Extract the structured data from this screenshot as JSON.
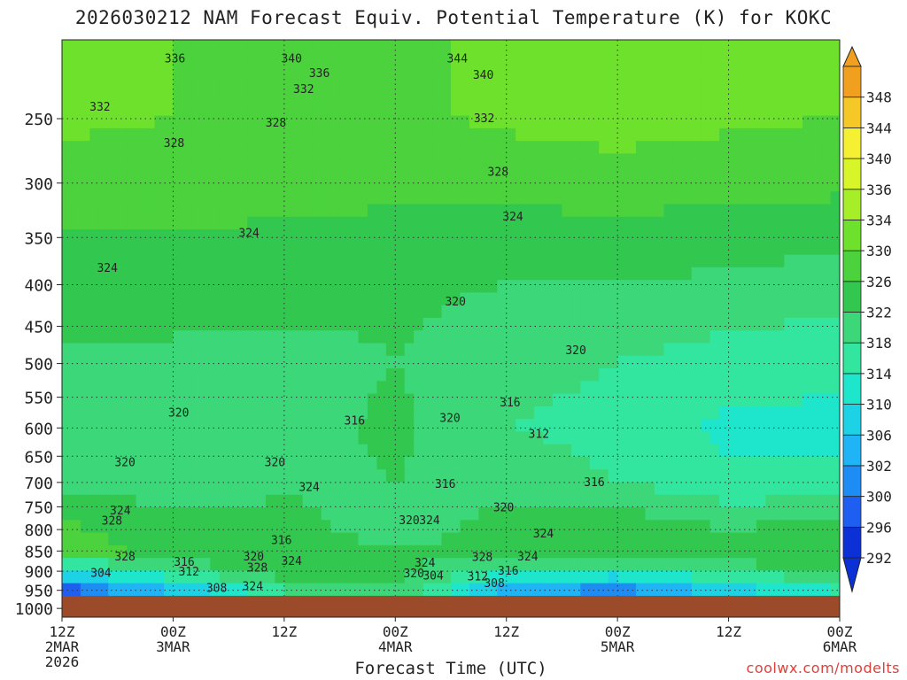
{
  "chart_data": {
    "type": "heatmap",
    "title": "2026030212 NAM Forecast Equiv. Potential Temperature (K) for KOKC",
    "xlabel": "Forecast Time (UTC)",
    "ylabel": "",
    "credit": "coolwx.com/modelts",
    "x_ticks": [
      {
        "hour": 0,
        "lines": [
          "12Z",
          "2MAR",
          "2026"
        ]
      },
      {
        "hour": 12,
        "lines": [
          "00Z",
          "3MAR"
        ]
      },
      {
        "hour": 24,
        "lines": [
          "12Z"
        ]
      },
      {
        "hour": 36,
        "lines": [
          "00Z",
          "4MAR"
        ]
      },
      {
        "hour": 48,
        "lines": [
          "12Z"
        ]
      },
      {
        "hour": 60,
        "lines": [
          "00Z",
          "5MAR"
        ]
      },
      {
        "hour": 72,
        "lines": [
          "12Z"
        ]
      },
      {
        "hour": 84,
        "lines": [
          "00Z",
          "6MAR"
        ]
      }
    ],
    "xlim": [
      0,
      84
    ],
    "y_ticks": [
      250,
      300,
      350,
      400,
      450,
      500,
      550,
      600,
      650,
      700,
      750,
      800,
      850,
      900,
      950,
      1000
    ],
    "ylim": [
      200,
      1025
    ],
    "y_scale": "log-pressure",
    "grid": "dotted",
    "ground_level_hpa": 965,
    "colorbar": {
      "levels": [
        292,
        296,
        300,
        302,
        306,
        310,
        314,
        318,
        322,
        326,
        330,
        334,
        336,
        340,
        344,
        348
      ],
      "colors": [
        "#0a30d6",
        "#1e5ef0",
        "#1e8cf5",
        "#1eb4f5",
        "#1ed2e6",
        "#1ee6cd",
        "#32e6a0",
        "#3cd778",
        "#32c850",
        "#4bd23c",
        "#6ee12d",
        "#a5ee28",
        "#d7f528",
        "#f5f032",
        "#f5c828",
        "#f0a01e"
      ]
    },
    "series": [
      {
        "name": "248 hPa",
        "x": [
          0,
          12,
          24,
          36,
          48,
          60,
          72,
          84
        ],
        "values": [
          331,
          330,
          329,
          329,
          331,
          332,
          331,
          330
        ]
      },
      {
        "name": "300 hPa",
        "x": [
          0,
          12,
          24,
          36,
          48,
          60,
          72,
          84
        ],
        "values": [
          328,
          328,
          327,
          327,
          327,
          328,
          327,
          327
        ]
      },
      {
        "name": "400 hPa",
        "x": [
          0,
          12,
          24,
          36,
          48,
          60,
          72,
          84
        ],
        "values": [
          324,
          324,
          324,
          323,
          322,
          322,
          321,
          320
        ]
      },
      {
        "name": "500 hPa",
        "x": [
          0,
          12,
          24,
          36,
          48,
          60,
          72,
          84
        ],
        "values": [
          321,
          321,
          320,
          322,
          319,
          318,
          316,
          315
        ]
      },
      {
        "name": "600 hPa",
        "x": [
          0,
          12,
          24,
          36,
          48,
          60,
          72,
          84
        ],
        "values": [
          320,
          320,
          320,
          323,
          318,
          317,
          313,
          313
        ]
      },
      {
        "name": "700 hPa",
        "x": [
          0,
          12,
          24,
          36,
          48,
          60,
          72,
          84
        ],
        "values": [
          321,
          320,
          321,
          322,
          320,
          318,
          315,
          315
        ]
      },
      {
        "name": "800 hPa",
        "x": [
          0,
          12,
          24,
          36,
          48,
          60,
          72,
          84
        ],
        "values": [
          327,
          323,
          324,
          319,
          324,
          325,
          322,
          324
        ]
      },
      {
        "name": "850 hPa",
        "x": [
          0,
          12,
          24,
          36,
          48,
          60,
          72,
          84
        ],
        "values": [
          328,
          325,
          326,
          322,
          325,
          326,
          325,
          325
        ]
      },
      {
        "name": "900 hPa",
        "x": [
          0,
          12,
          24,
          36,
          48,
          60,
          72,
          84
        ],
        "values": [
          310,
          318,
          325,
          324,
          315,
          314,
          320,
          322
        ]
      },
      {
        "name": "950 hPa",
        "x": [
          0,
          12,
          24,
          36,
          48,
          60,
          72,
          84
        ],
        "values": [
          298,
          306,
          318,
          322,
          304,
          300,
          308,
          314
        ]
      }
    ],
    "contour_labels": [
      {
        "text": "336",
        "x": 12.2,
        "p": 211
      },
      {
        "text": "340",
        "x": 24.8,
        "p": 211
      },
      {
        "text": "336",
        "x": 27.8,
        "p": 220
      },
      {
        "text": "344",
        "x": 42.7,
        "p": 211
      },
      {
        "text": "340",
        "x": 45.5,
        "p": 221
      },
      {
        "text": "332",
        "x": 26.1,
        "p": 230
      },
      {
        "text": "332",
        "x": 4.1,
        "p": 242
      },
      {
        "text": "328",
        "x": 23.1,
        "p": 253
      },
      {
        "text": "332",
        "x": 45.6,
        "p": 250
      },
      {
        "text": "328",
        "x": 12.1,
        "p": 268
      },
      {
        "text": "328",
        "x": 47.1,
        "p": 291
      },
      {
        "text": "324",
        "x": 20.2,
        "p": 346
      },
      {
        "text": "324",
        "x": 48.7,
        "p": 330
      },
      {
        "text": "324",
        "x": 4.9,
        "p": 382
      },
      {
        "text": "320",
        "x": 42.5,
        "p": 420
      },
      {
        "text": "320",
        "x": 55.5,
        "p": 482
      },
      {
        "text": "316",
        "x": 48.4,
        "p": 559
      },
      {
        "text": "316",
        "x": 31.6,
        "p": 588
      },
      {
        "text": "320",
        "x": 12.6,
        "p": 575
      },
      {
        "text": "320",
        "x": 41.9,
        "p": 584
      },
      {
        "text": "312",
        "x": 51.5,
        "p": 611
      },
      {
        "text": "320",
        "x": 6.8,
        "p": 662
      },
      {
        "text": "320",
        "x": 23.0,
        "p": 662
      },
      {
        "text": "324",
        "x": 26.7,
        "p": 710
      },
      {
        "text": "316",
        "x": 41.4,
        "p": 704
      },
      {
        "text": "316",
        "x": 57.5,
        "p": 700
      },
      {
        "text": "320",
        "x": 47.7,
        "p": 752
      },
      {
        "text": "324",
        "x": 6.3,
        "p": 759
      },
      {
        "text": "328",
        "x": 5.4,
        "p": 781
      },
      {
        "text": "320",
        "x": 37.5,
        "p": 780
      },
      {
        "text": "324",
        "x": 39.7,
        "p": 780
      },
      {
        "text": "316",
        "x": 23.7,
        "p": 825
      },
      {
        "text": "324",
        "x": 52.0,
        "p": 810
      },
      {
        "text": "328",
        "x": 6.8,
        "p": 864
      },
      {
        "text": "320",
        "x": 20.7,
        "p": 864
      },
      {
        "text": "328",
        "x": 21.1,
        "p": 892
      },
      {
        "text": "324",
        "x": 24.8,
        "p": 875
      },
      {
        "text": "324",
        "x": 50.3,
        "p": 864
      },
      {
        "text": "328",
        "x": 45.4,
        "p": 866
      },
      {
        "text": "316",
        "x": 13.2,
        "p": 878
      },
      {
        "text": "324",
        "x": 39.2,
        "p": 880
      },
      {
        "text": "312",
        "x": 13.7,
        "p": 902
      },
      {
        "text": "304",
        "x": 4.2,
        "p": 905
      },
      {
        "text": "316",
        "x": 48.2,
        "p": 900
      },
      {
        "text": "320",
        "x": 38.0,
        "p": 906
      },
      {
        "text": "304",
        "x": 40.1,
        "p": 912
      },
      {
        "text": "312",
        "x": 44.9,
        "p": 915
      },
      {
        "text": "308",
        "x": 16.7,
        "p": 945
      },
      {
        "text": "324",
        "x": 20.6,
        "p": 940
      },
      {
        "text": "308",
        "x": 46.7,
        "p": 932
      }
    ]
  }
}
